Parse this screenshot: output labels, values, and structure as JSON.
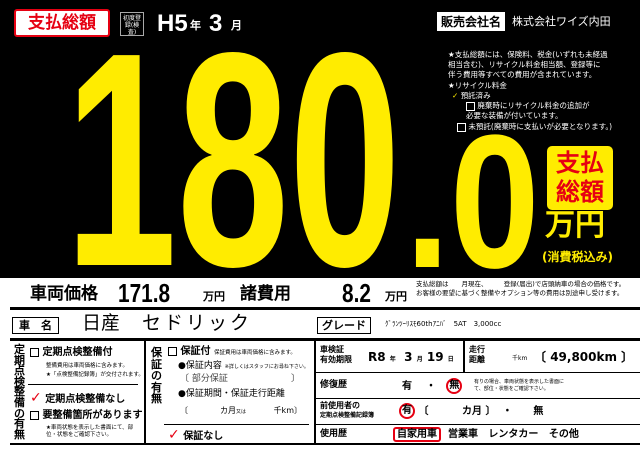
{
  "header": {
    "badge": "支払総額",
    "first_reg_label": "初度登録(検査)",
    "era_year": "H5",
    "year_unit": "年",
    "month": "3",
    "month_unit": "月"
  },
  "seller": {
    "label": "販売会社名",
    "name": "株式会社ワイズ内田"
  },
  "notes": {
    "total_note": "★支払総額には、保険料、税金(いずれも未経過相当含む)、リサイクル料金相当額、登録等に伴う費用等すべての費用が含まれています。",
    "recycle_title": "★リサイクル料金",
    "recycle_deposited": "預託済み",
    "recycle_extra": "廃棄時にリサイクル料金の追加が必要な装備が付いています。",
    "recycle_not": "未預託(廃棄時に支払いが必要となります。)"
  },
  "price": {
    "total": "180.0",
    "total_badge_1": "支払",
    "total_badge_2": "総額",
    "unit": "万円",
    "tax": "(消費税込み)",
    "colors": {
      "accent": "#ffec00",
      "red": "#e60012"
    }
  },
  "vehicle": {
    "price_label": "車両価格",
    "price": "171.8",
    "price_unit": "万円",
    "fees_label": "諸費用",
    "fees": "8.2",
    "fees_unit": "万円",
    "fees_note": "支払総額は　　月現在、　　　登録(届出)で店頭納車の場合の価格です。お客様の要望に基づく整備やオプション等の費用は別途申し受けます。"
  },
  "car": {
    "name_label": "車　名",
    "maker": "日産",
    "model": "セドリック",
    "grade_label": "グレード",
    "grade": "ｸﾞﾗﾝﾂｰﾘｽﾓ60thｱﾆﾊﾞ　5AT　3,000cc"
  },
  "inspection": {
    "title": "定期点検整備の有無",
    "with": "定期点検整備付",
    "with_note1": "整備費用は車両価格に含みます。",
    "with_note2": "★「点検整備記録簿」が交付されます。",
    "without": "定期点検整備なし",
    "needs": "要整備箇所があります",
    "needs_note": "★車両状態を表示した書面にて、部位・状態をご確認下さい。"
  },
  "warranty": {
    "title": "保証の有無",
    "with": "保証付",
    "with_note": "保証費用は車両価格に含みます。",
    "content_label": "●保証内容",
    "content_note": "※詳しくはスタッフにお尋ね下さい。",
    "content": "部分保証",
    "period_label": "●保証期間・保証走行距離",
    "months_unit": "カ月",
    "or": "又は",
    "km_unit": "千km",
    "without": "保証なし"
  },
  "details": {
    "shaken_label_1": "車検証",
    "shaken_label_2": "有効期限",
    "shaken_era": "R8",
    "year_unit": "年",
    "shaken_month": "3",
    "month_unit": "月",
    "shaken_day": "19",
    "day_unit": "日",
    "mileage_label_1": "走行",
    "mileage_label_2": "距離",
    "mileage_unit": "千km",
    "mileage": "49,800km",
    "repair_label": "修復歴",
    "yes": "有",
    "dot": "・",
    "no": "無",
    "repair_note": "有りの場合、車両状態を表示した書面にて、部位・状態をご確認下さい。",
    "prev_label_1": "前使用者の",
    "prev_label_2": "定期点検整備記録簿",
    "prev_months": "カ月",
    "usage_label": "使用歴",
    "usage": [
      "自家用車",
      "営業車",
      "レンタカー",
      "その他"
    ]
  }
}
